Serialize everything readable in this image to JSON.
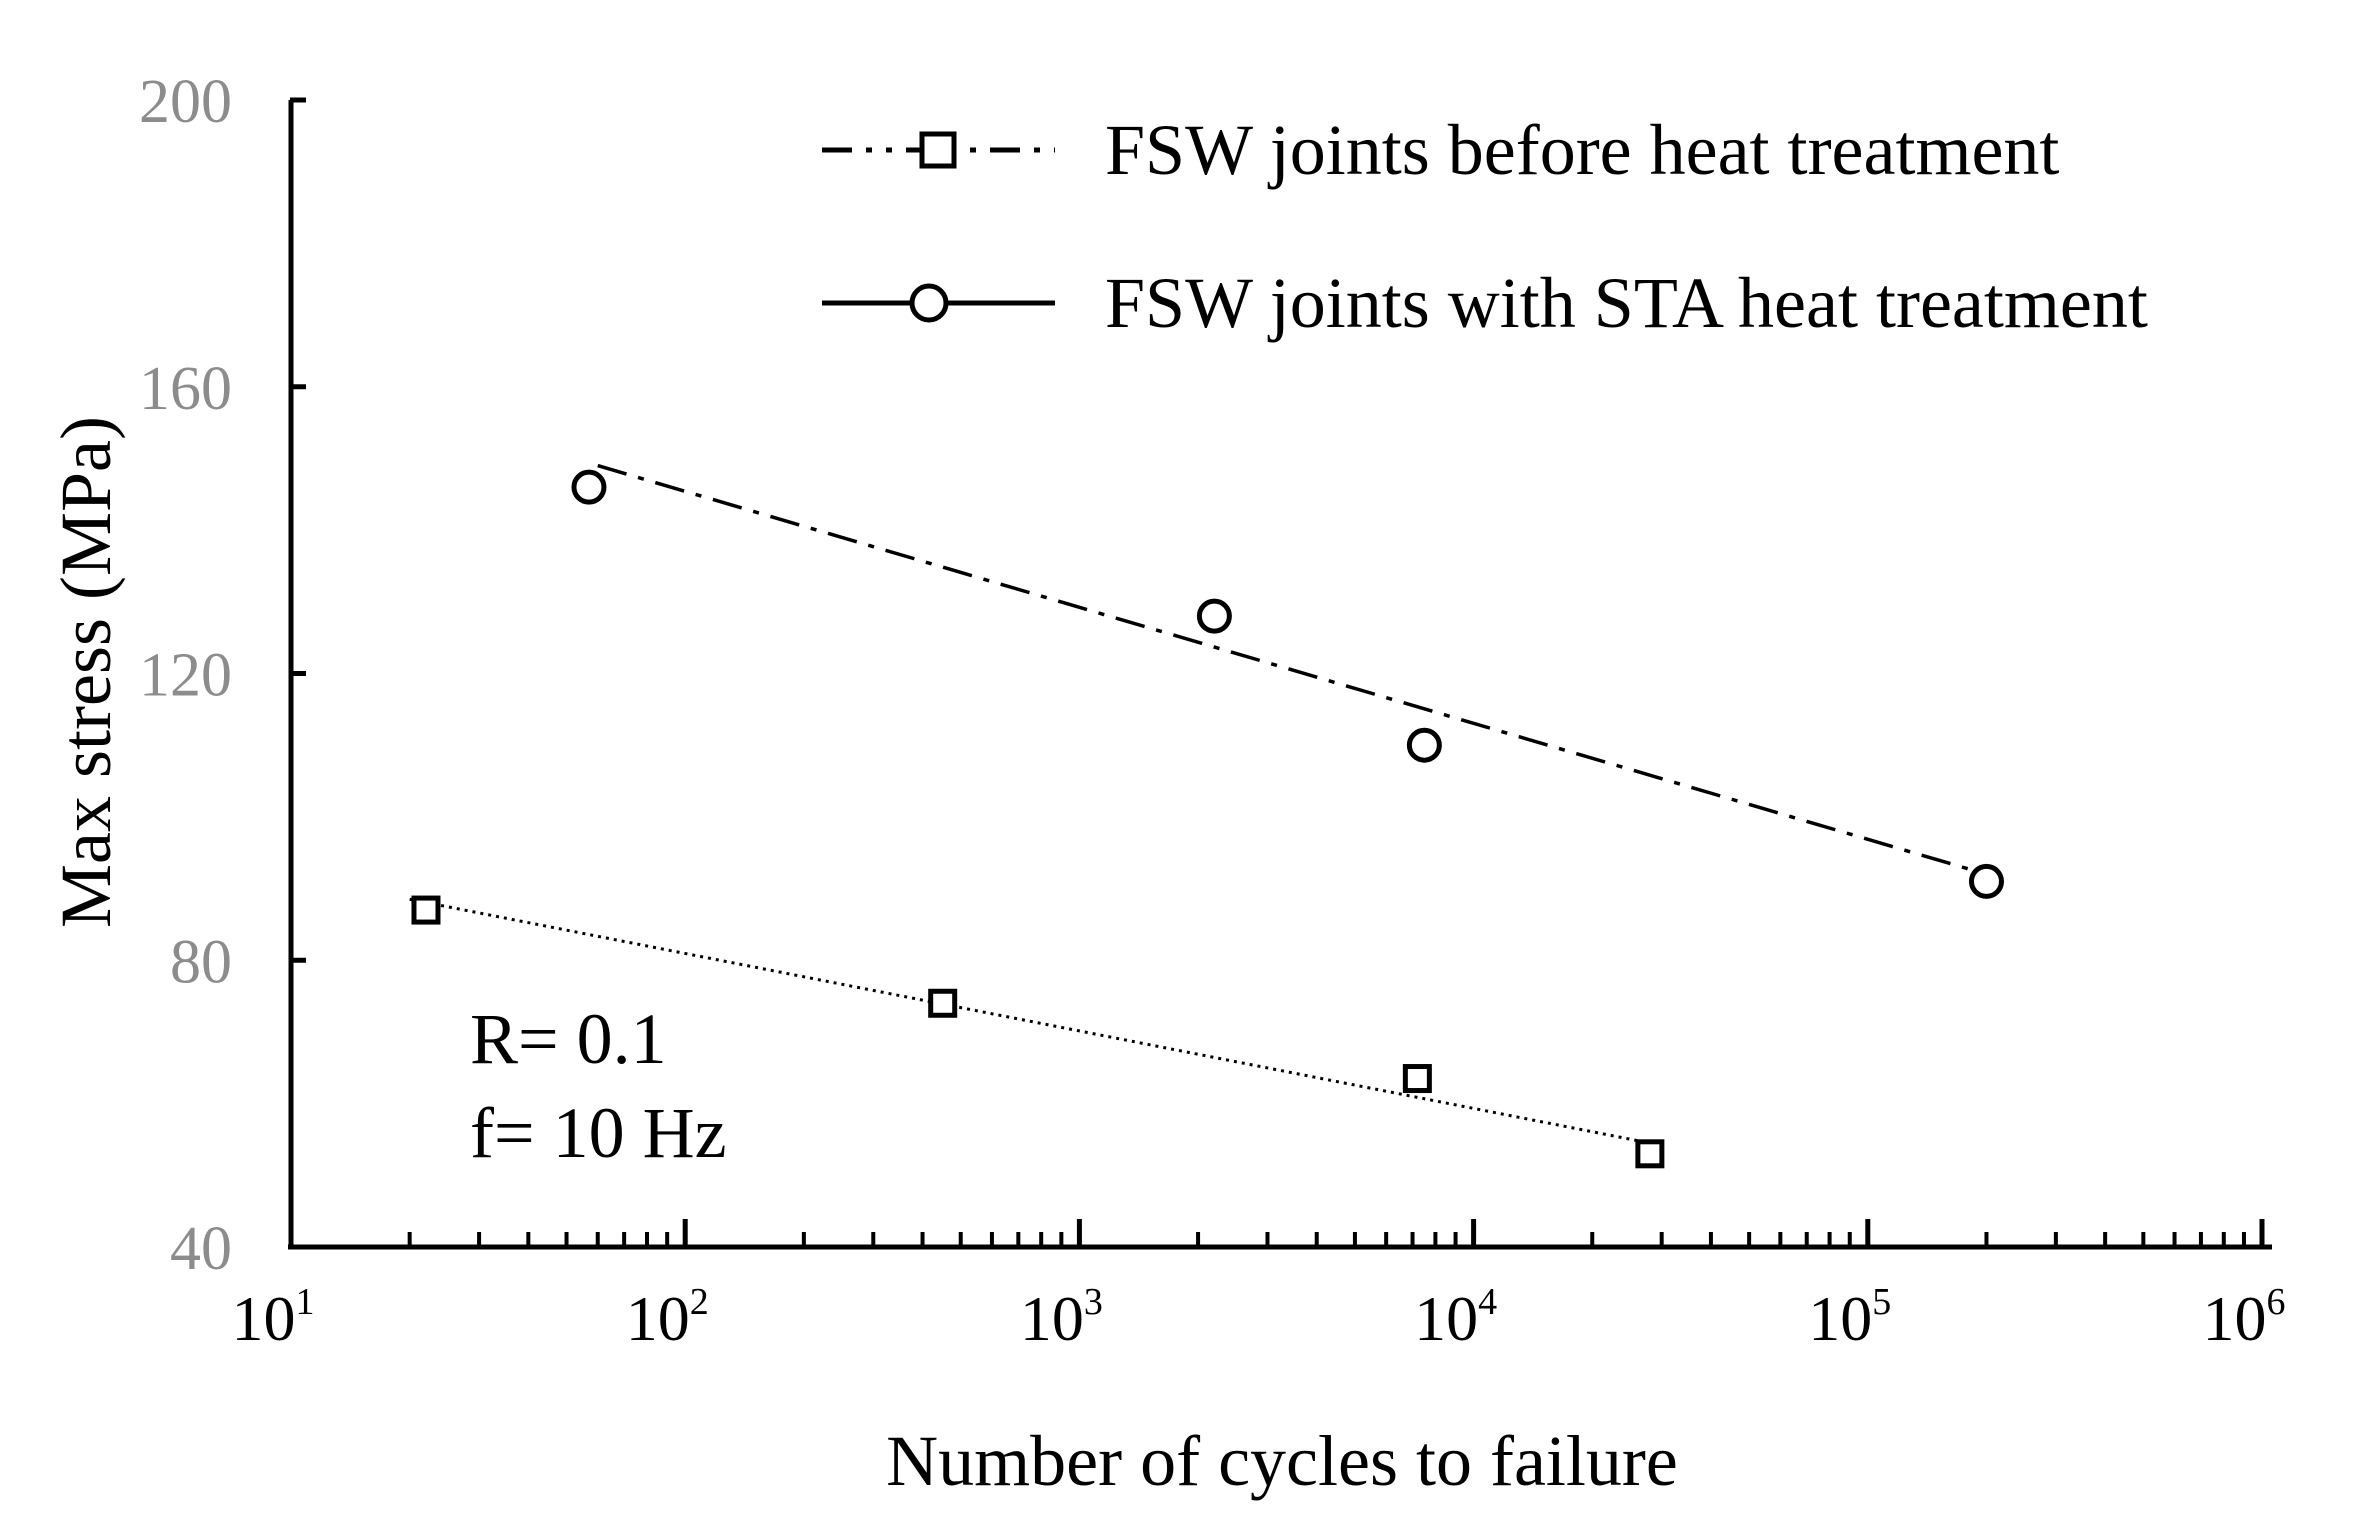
{
  "chart_data": {
    "type": "scatter",
    "title": "",
    "xlabel": "Number of cycles to failure",
    "ylabel": "Max stress (MPa)",
    "xscale": "log",
    "xlim": [
      10,
      1000000
    ],
    "ylim": [
      40,
      200
    ],
    "xticks": [
      {
        "base": "10",
        "exp": "1"
      },
      {
        "base": "10",
        "exp": "2"
      },
      {
        "base": "10",
        "exp": "3"
      },
      {
        "base": "10",
        "exp": "4"
      },
      {
        "base": "10",
        "exp": "5"
      },
      {
        "base": "10",
        "exp": "6"
      }
    ],
    "xtick_values": [
      10,
      100,
      1000,
      10000,
      100000,
      1000000
    ],
    "yticks": [
      "40",
      "80",
      "120",
      "160",
      "200"
    ],
    "ytick_values": [
      40,
      80,
      120,
      160,
      200
    ],
    "grid": false,
    "legend_position": "top-right",
    "series": [
      {
        "name": "FSW joints before heat treatment",
        "marker": "square",
        "line_style": "dotted",
        "legend_line_style": "dash-dot-dotted",
        "x": [
          22,
          450,
          7200,
          28000
        ],
        "y": [
          87,
          74,
          63.5,
          53
        ],
        "trend": {
          "x": [
            20,
            28000
          ],
          "y": [
            88.5,
            54.5
          ]
        }
      },
      {
        "name": "FSW joints with STA heat treatment",
        "marker": "circle",
        "line_style": "dash-dot",
        "legend_line_style": "solid",
        "x": [
          57,
          2200,
          7500,
          200000
        ],
        "y": [
          146,
          128,
          110,
          91
        ],
        "trend": {
          "x": [
            60,
            200000
          ],
          "y": [
            149,
            92
          ]
        }
      }
    ],
    "annotations": [
      "R= 0.1",
      "f= 10 Hz"
    ]
  }
}
